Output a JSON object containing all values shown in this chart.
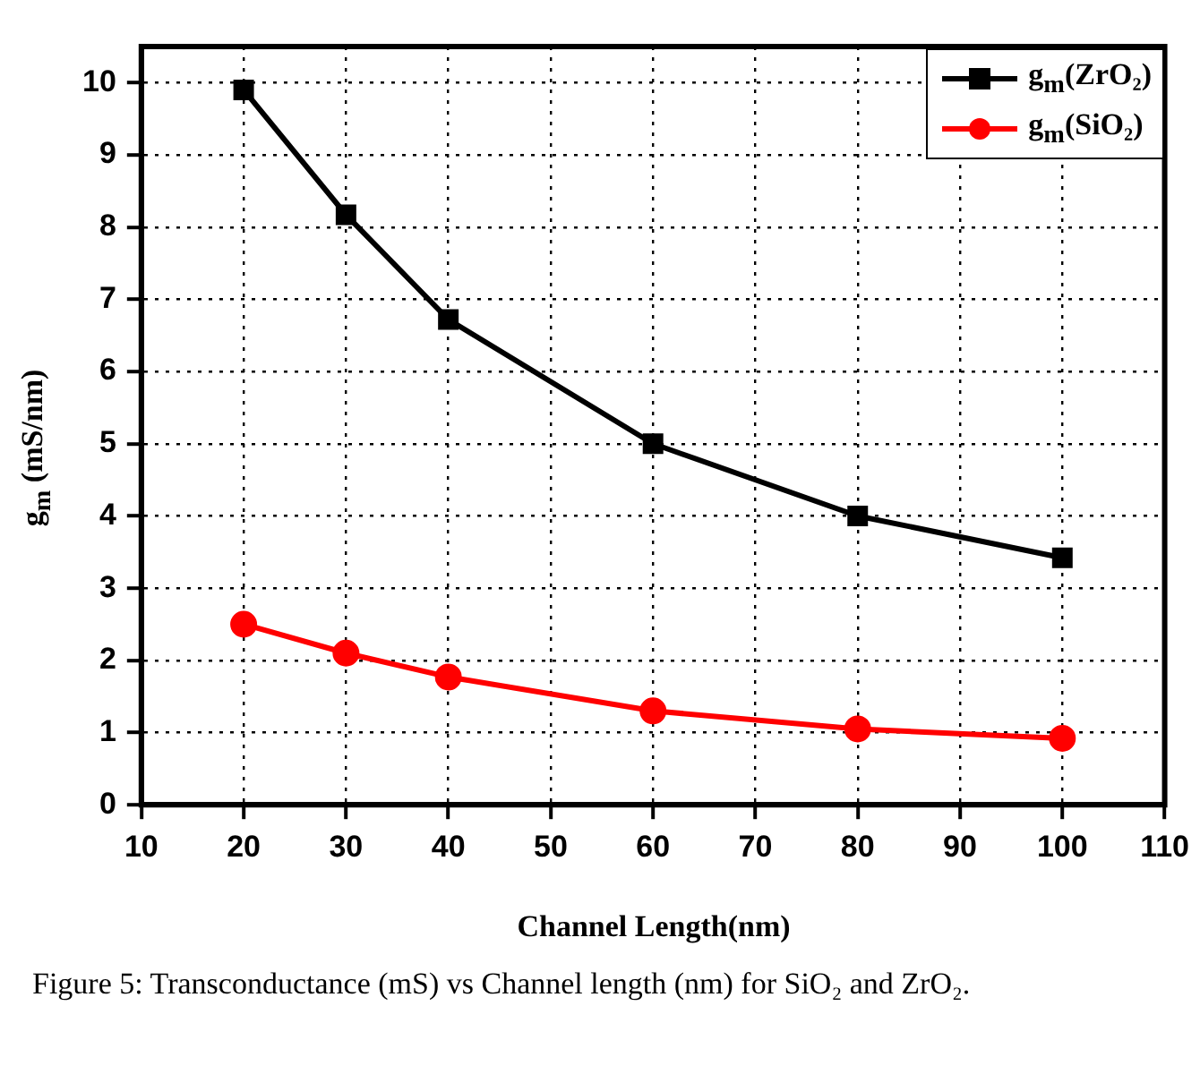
{
  "chart_data": {
    "type": "line",
    "xlabel": "Channel Length(nm)",
    "ylabel": "g$_{m}$ (mS/nm)",
    "x": [
      20,
      30,
      40,
      60,
      80,
      100
    ],
    "series": [
      {
        "name": "g$_{m}$(ZrO₂)",
        "color": "#000000",
        "marker": "square",
        "values": [
          9.9,
          8.17,
          6.72,
          5.0,
          4.0,
          3.42
        ]
      },
      {
        "name": "g$_{m}$(SiO₂)",
        "color": "#ff0000",
        "marker": "circle",
        "values": [
          2.5,
          2.1,
          1.77,
          1.3,
          1.05,
          0.92
        ]
      }
    ],
    "xlim": [
      10,
      110
    ],
    "xticks": [
      10,
      20,
      30,
      40,
      50,
      60,
      70,
      80,
      90,
      100,
      110
    ],
    "ylim": [
      0,
      10.5
    ],
    "yticks": [
      0,
      1,
      2,
      3,
      4,
      5,
      6,
      7,
      8,
      9,
      10
    ],
    "grid": true,
    "legend": "top right",
    "line_style": "solid",
    "annotations": [
      "Figure 5: Transconductance (mS) vs Channel length (nm) for SiO₂ and ZrO₂."
    ]
  }
}
